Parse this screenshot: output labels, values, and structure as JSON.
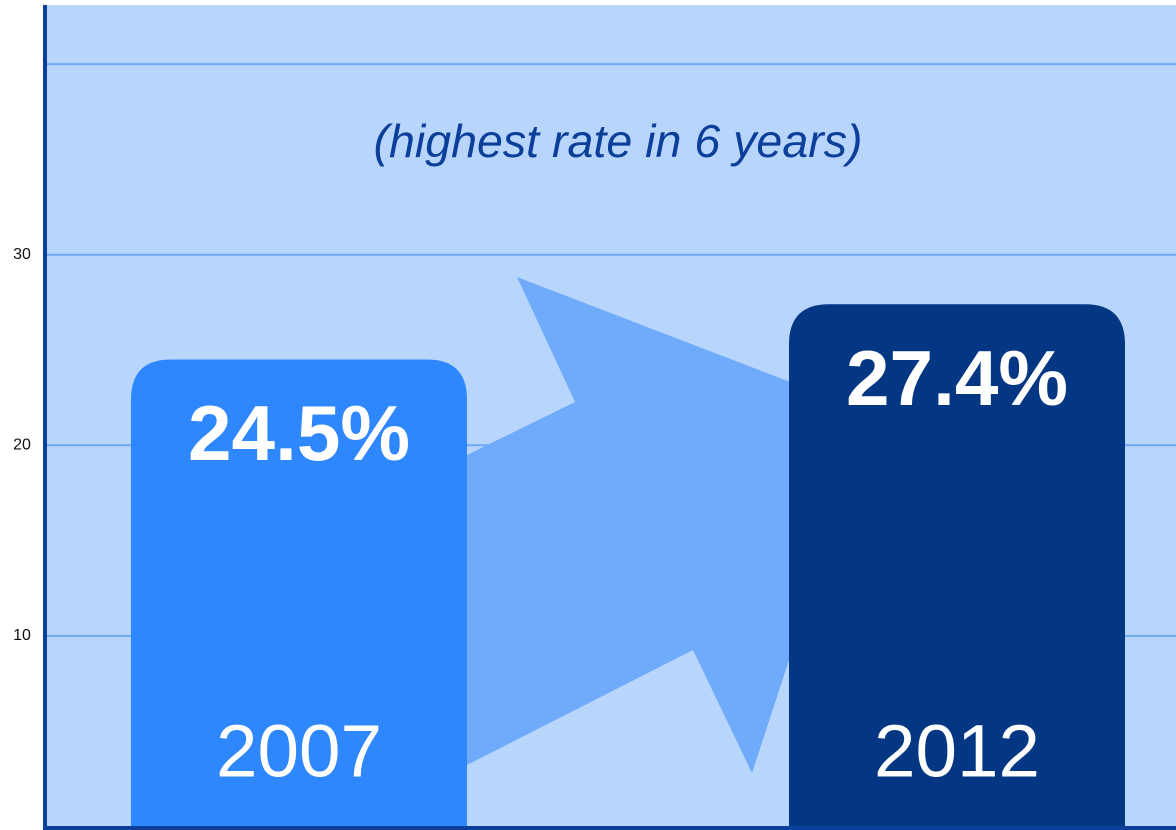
{
  "chart_data": {
    "type": "bar",
    "annotation": "(highest rate in 6 years)",
    "categories": [
      "2007",
      "2012"
    ],
    "values": [
      24.5,
      27.4
    ],
    "value_labels": [
      "24.5%",
      "27.4%"
    ],
    "colors": [
      "#2f87fe",
      "#043783"
    ],
    "ylim": [
      0,
      43.1
    ],
    "yticks": [
      10,
      20,
      30
    ],
    "grid_lines": [
      10,
      20,
      30,
      40
    ],
    "grid": true
  }
}
